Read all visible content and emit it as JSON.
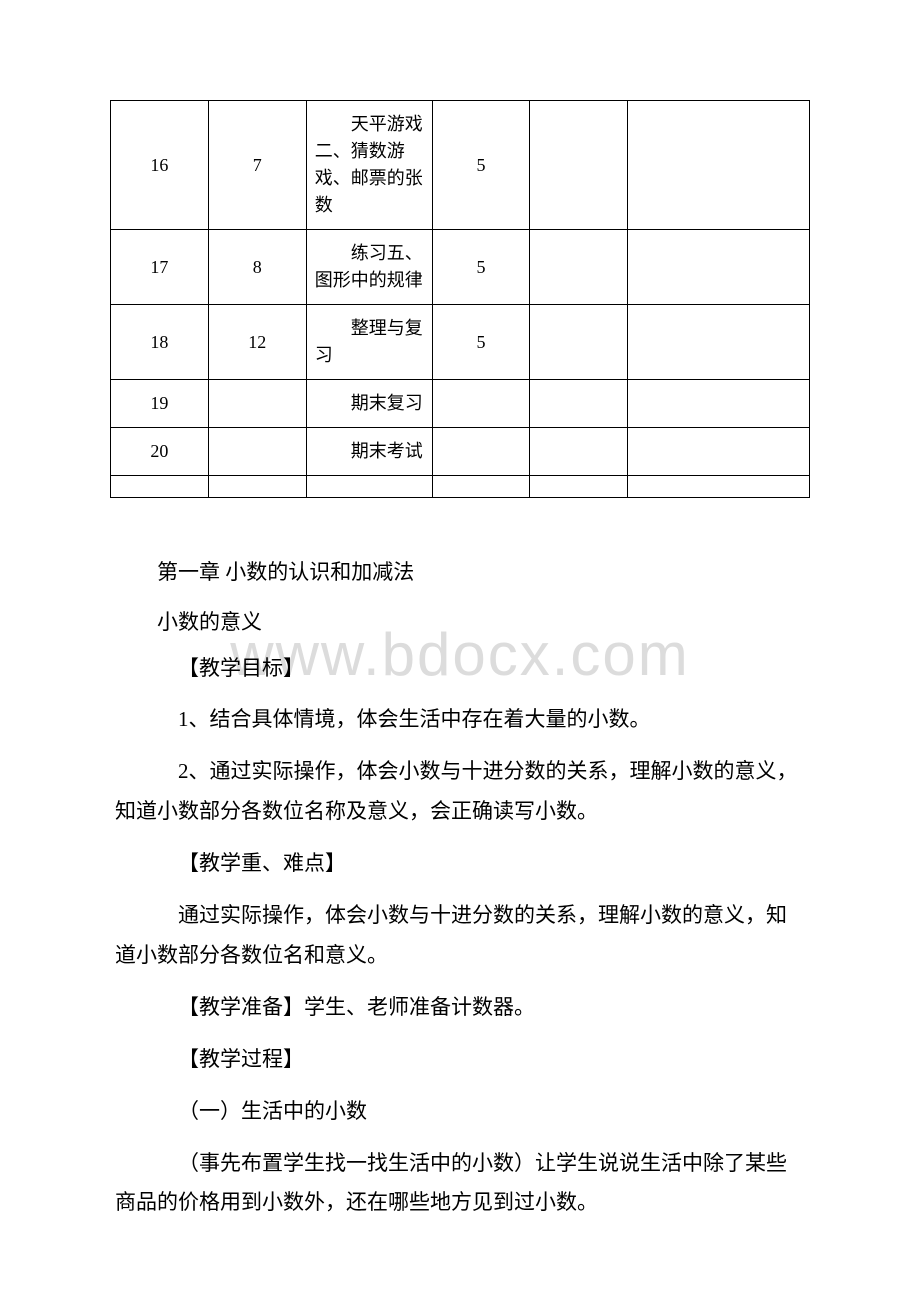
{
  "table": {
    "columns": [
      "col1",
      "col2",
      "col3",
      "col4",
      "col5",
      "col6"
    ],
    "rows": [
      [
        "16",
        "7",
        "天平游戏二、猜数游戏、邮票的张数",
        "5",
        "",
        ""
      ],
      [
        "17",
        "8",
        "练习五、图形中的规律",
        "5",
        "",
        ""
      ],
      [
        "18",
        "12",
        "整理与复习",
        "5",
        "",
        ""
      ],
      [
        "19",
        "",
        "期末复习",
        "",
        "",
        ""
      ],
      [
        "20",
        "",
        "期末考试",
        "",
        "",
        ""
      ],
      [
        "",
        "",
        "",
        "",
        "",
        ""
      ]
    ],
    "border_color": "#000000",
    "font_size": 18,
    "background_color": "#ffffff"
  },
  "watermark": {
    "text": "www.bdocx.com",
    "color": "#dcdcdc",
    "font_size": 60
  },
  "content": {
    "chapter_title": "第一章 小数的认识和加减法",
    "section_title": "小数的意义",
    "h_obj": "【教学目标】",
    "obj_1": "1、结合具体情境，体会生活中存在着大量的小数。",
    "obj_2": "2、通过实际操作，体会小数与十进分数的关系，理解小数的意义，知道小数部分各数位名称及意义，会正确读写小数。",
    "h_diff": "【教学重、难点】",
    "diff_text": "通过实际操作，体会小数与十进分数的关系，理解小数的意义，知道小数部分各数位名和意义。",
    "h_prep": "【教学准备】学生、老师准备计数器。",
    "h_proc": "【教学过程】",
    "proc_1": "（一）生活中的小数",
    "proc_2": "（事先布置学生找一找生活中的小数）让学生说说生活中除了某些商品的价格用到小数外，还在哪些地方见到过小数。"
  },
  "style": {
    "body_font_size": 21,
    "body_color": "#000000",
    "background_color": "#ffffff"
  }
}
